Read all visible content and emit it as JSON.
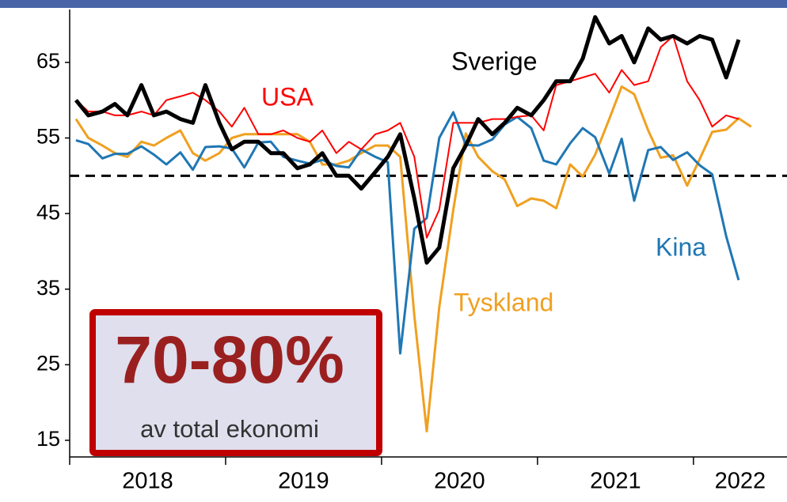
{
  "chart_data": {
    "type": "line",
    "x": [
      2018.04,
      2018.12,
      2018.21,
      2018.29,
      2018.37,
      2018.46,
      2018.54,
      2018.62,
      2018.71,
      2018.79,
      2018.87,
      2018.96,
      2019.04,
      2019.12,
      2019.21,
      2019.29,
      2019.37,
      2019.46,
      2019.54,
      2019.62,
      2019.71,
      2019.79,
      2019.87,
      2019.96,
      2020.04,
      2020.12,
      2020.21,
      2020.29,
      2020.37,
      2020.46,
      2020.54,
      2020.62,
      2020.71,
      2020.79,
      2020.87,
      2020.96,
      2021.04,
      2021.12,
      2021.21,
      2021.29,
      2021.37,
      2021.46,
      2021.54,
      2021.62,
      2021.71,
      2021.79,
      2021.87,
      2021.96,
      2022.04,
      2022.12,
      2022.21,
      2022.29,
      2022.37
    ],
    "series": [
      {
        "name": "Sverige",
        "color": "#000000",
        "values": [
          60,
          58,
          58.5,
          59.5,
          58,
          62,
          58,
          58.5,
          57.5,
          57,
          62,
          57,
          53.5,
          54.5,
          54.5,
          53,
          53,
          51,
          51.5,
          53,
          50,
          50,
          48.3,
          50.5,
          52.5,
          55.5,
          47,
          38.5,
          40.5,
          51,
          54,
          57.5,
          55.5,
          57,
          59,
          58,
          60,
          62.5,
          62.5,
          65.5,
          71,
          67.5,
          68.5,
          65,
          69.5,
          68,
          68.5,
          67.5,
          68.5,
          68,
          63,
          68,
          null
        ]
      },
      {
        "name": "USA",
        "color": "#ff0000",
        "values": [
          60,
          58.5,
          58.5,
          58,
          58,
          58.5,
          58,
          60,
          60.5,
          61,
          60,
          58.5,
          56.5,
          59,
          55.5,
          55.5,
          56,
          55,
          54.5,
          56,
          53,
          54.5,
          53.5,
          55.5,
          56,
          57,
          52.5,
          41.8,
          45.5,
          57,
          57,
          57,
          57.5,
          57.5,
          57.8,
          58,
          56,
          62,
          62.5,
          63,
          63.5,
          61,
          64,
          62,
          62.5,
          67,
          68.5,
          62.5,
          60,
          56.5,
          58,
          57.5,
          null
        ]
      },
      {
        "name": "Tyskland",
        "color": "#f0a020",
        "values": [
          57.5,
          55,
          54,
          53,
          52.5,
          54.5,
          54,
          55,
          56,
          53,
          52,
          53,
          55,
          55.5,
          55.5,
          55.5,
          55.5,
          55.5,
          54.5,
          51.5,
          51.5,
          52,
          53,
          54,
          54,
          52.5,
          31.5,
          16.2,
          32.6,
          45.5,
          55.6,
          52.5,
          50.6,
          49.5,
          46,
          47,
          46.7,
          45.7,
          51.5,
          49.9,
          52.8,
          57.5,
          61.8,
          60.8,
          56,
          52.4,
          52.7,
          48.7,
          52.2,
          55.8,
          56.1,
          57.6,
          56.5
        ]
      },
      {
        "name": "Kina",
        "color": "#1f77b4",
        "values": [
          54.7,
          54.2,
          52.3,
          52.9,
          52.9,
          53.9,
          52.8,
          51.5,
          53.1,
          50.8,
          53.8,
          53.9,
          53.6,
          51.1,
          54.4,
          54.5,
          52.5,
          52,
          51.6,
          52.1,
          51.3,
          51.1,
          53.5,
          52.5,
          51.8,
          26.5,
          43,
          44.4,
          55,
          58.4,
          54.1,
          54,
          54.8,
          56.8,
          57.8,
          56.3,
          52,
          51.5,
          54.3,
          56.3,
          55.1,
          50.3,
          54.9,
          46.7,
          53.4,
          53.8,
          52.1,
          53.1,
          51.4,
          50.2,
          42,
          36.2,
          null
        ]
      }
    ],
    "xlim": [
      2018,
      2022.6
    ],
    "xticks": [
      2018,
      2019,
      2020,
      2021,
      2022
    ],
    "ylim": [
      12.8,
      72
    ],
    "yticks": [
      15,
      25,
      35,
      45,
      55,
      65
    ],
    "reference_line": 50,
    "annotation": {
      "headline": "70-80%",
      "text": "av total ekonomi"
    }
  }
}
